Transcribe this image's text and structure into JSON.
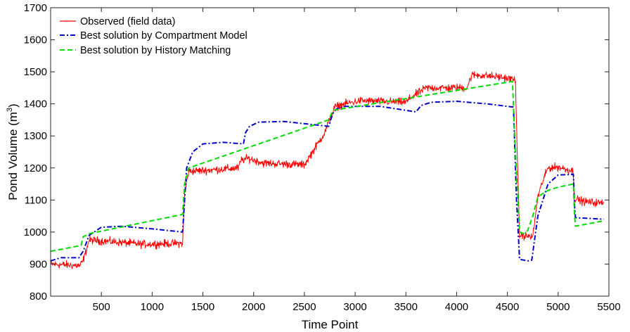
{
  "chart_data": {
    "type": "line",
    "xlabel": "Time Point",
    "ylabel": "Pond Volume (m",
    "ylabel_sup": "3",
    "ylabel_close": ")",
    "xlim": [
      0,
      5500
    ],
    "ylim": [
      800,
      1700
    ],
    "xticks": [
      500,
      1000,
      1500,
      2000,
      2500,
      3000,
      3500,
      4000,
      4500,
      5000,
      5500
    ],
    "yticks": [
      800,
      900,
      1000,
      1100,
      1200,
      1300,
      1400,
      1500,
      1600,
      1700
    ],
    "grid": false,
    "legend_position": "top-left",
    "series": [
      {
        "name": "Observed (field data)",
        "color": "#ff0000",
        "style": "solid",
        "noise_amplitude": 12,
        "x": [
          0,
          290,
          320,
          380,
          600,
          900,
          1300,
          1320,
          1360,
          1500,
          1850,
          1880,
          1950,
          2000,
          2100,
          2500,
          2600,
          2700,
          2760,
          2800,
          2900,
          3050,
          3500,
          3550,
          3650,
          3700,
          4100,
          4150,
          4200,
          4400,
          4580,
          4600,
          4620,
          4750,
          4800,
          4850,
          4900,
          5000,
          5150,
          5160,
          5250,
          5450
        ],
        "y": [
          900,
          895,
          910,
          975,
          970,
          962,
          965,
          1120,
          1190,
          1192,
          1200,
          1225,
          1230,
          1225,
          1215,
          1210,
          1260,
          1310,
          1360,
          1390,
          1400,
          1410,
          1405,
          1420,
          1440,
          1450,
          1450,
          1490,
          1490,
          1485,
          1475,
          1200,
          990,
          985,
          1110,
          1160,
          1200,
          1203,
          1190,
          1105,
          1095,
          1090
        ]
      },
      {
        "name": "Best solution by Compartment Model",
        "color": "#0000cc",
        "style": "dashdot",
        "x": [
          0,
          100,
          280,
          320,
          380,
          500,
          700,
          1000,
          1300,
          1340,
          1400,
          1500,
          1700,
          1900,
          1920,
          1960,
          2050,
          2300,
          2740,
          2780,
          2820,
          2900,
          3250,
          3600,
          3650,
          3750,
          4000,
          4300,
          4560,
          4590,
          4620,
          4700,
          4740,
          4800,
          4900,
          5000,
          5150,
          5165,
          5450
        ],
        "y": [
          910,
          920,
          920,
          940,
          990,
          1015,
          1018,
          1010,
          1000,
          1200,
          1250,
          1275,
          1280,
          1275,
          1310,
          1330,
          1343,
          1345,
          1330,
          1370,
          1385,
          1392,
          1392,
          1375,
          1395,
          1405,
          1408,
          1400,
          1390,
          1100,
          915,
          910,
          912,
          1050,
          1150,
          1178,
          1180,
          1045,
          1040
        ]
      },
      {
        "name": "Best solution by History Matching",
        "color": "#00dd00",
        "style": "dashed",
        "x": [
          0,
          300,
          320,
          380,
          1300,
          1320,
          1360,
          2740,
          2780,
          4550,
          4580,
          4620,
          4660,
          4700,
          4750,
          4800,
          4900,
          5000,
          5150,
          5165,
          5450
        ],
        "y": [
          940,
          958,
          985,
          995,
          1055,
          1150,
          1200,
          1350,
          1380,
          1470,
          1240,
          1000,
          995,
          1005,
          1050,
          1110,
          1130,
          1140,
          1150,
          1018,
          1035
        ]
      }
    ]
  }
}
